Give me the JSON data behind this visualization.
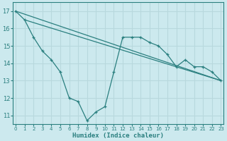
{
  "xlabel": "Humidex (Indice chaleur)",
  "xlim": [
    -0.3,
    23.3
  ],
  "ylim": [
    10.5,
    17.5
  ],
  "yticks": [
    11,
    12,
    13,
    14,
    15,
    16,
    17
  ],
  "xticks": [
    0,
    1,
    2,
    3,
    4,
    5,
    6,
    7,
    8,
    9,
    10,
    11,
    12,
    13,
    14,
    15,
    16,
    17,
    18,
    19,
    20,
    21,
    22,
    23
  ],
  "bg_color": "#cce9ee",
  "line_color": "#2a7f7f",
  "grid_color": "#b8d8dd",
  "series": [
    {
      "x": [
        0,
        23
      ],
      "y": [
        17,
        13.0
      ]
    },
    {
      "x": [
        1,
        23
      ],
      "y": [
        16.5,
        13.0
      ]
    },
    {
      "x": [
        0,
        1,
        2,
        3,
        4,
        5,
        6,
        7,
        8,
        9,
        10,
        11,
        12,
        13,
        14,
        15,
        16,
        17,
        18,
        19,
        20,
        21,
        22,
        23
      ],
      "y": [
        17,
        16.5,
        15.5,
        14.7,
        14.2,
        13.5,
        12.0,
        11.8,
        10.7,
        11.2,
        11.5,
        13.5,
        15.5,
        15.5,
        15.5,
        15.2,
        15.0,
        14.5,
        13.8,
        14.2,
        13.8,
        13.8,
        13.5,
        13.0
      ]
    }
  ]
}
